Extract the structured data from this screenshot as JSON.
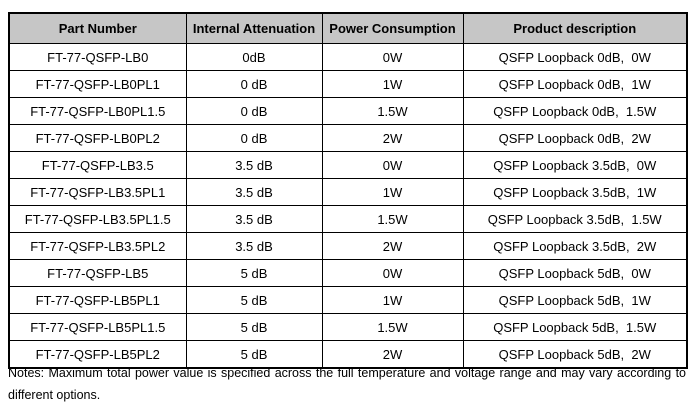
{
  "table": {
    "headers": [
      "Part Number",
      "Internal Attenuation",
      "Power Consumption",
      "Product description"
    ],
    "rows": [
      [
        "FT-77-QSFP-LB0",
        "0dB",
        "0W",
        "QSFP Loopback 0dB,  0W"
      ],
      [
        "FT-77-QSFP-LB0PL1",
        "0 dB",
        "1W",
        "QSFP Loopback 0dB,  1W"
      ],
      [
        "FT-77-QSFP-LB0PL1.5",
        "0 dB",
        "1.5W",
        "QSFP Loopback 0dB,  1.5W"
      ],
      [
        "FT-77-QSFP-LB0PL2",
        "0 dB",
        "2W",
        "QSFP Loopback 0dB,  2W"
      ],
      [
        "FT-77-QSFP-LB3.5",
        "3.5 dB",
        "0W",
        "QSFP Loopback 3.5dB,  0W"
      ],
      [
        "FT-77-QSFP-LB3.5PL1",
        "3.5 dB",
        "1W",
        "QSFP Loopback 3.5dB,  1W"
      ],
      [
        "FT-77-QSFP-LB3.5PL1.5",
        "3.5 dB",
        "1.5W",
        "QSFP Loopback 3.5dB,  1.5W"
      ],
      [
        "FT-77-QSFP-LB3.5PL2",
        "3.5 dB",
        "2W",
        "QSFP Loopback 3.5dB,  2W"
      ],
      [
        "FT-77-QSFP-LB5",
        "5 dB",
        "0W",
        "QSFP Loopback 5dB,  0W"
      ],
      [
        "FT-77-QSFP-LB5PL1",
        "5 dB",
        "1W",
        "QSFP Loopback 5dB,  1W"
      ],
      [
        "FT-77-QSFP-LB5PL1.5",
        "5 dB",
        "1.5W",
        "QSFP Loopback 5dB,  1.5W"
      ],
      [
        "FT-77-QSFP-LB5PL2",
        "5 dB",
        "2W",
        "QSFP Loopback 5dB,  2W"
      ]
    ],
    "cell_names": [
      "part-number-cell",
      "attenuation-cell",
      "power-cell",
      "description-cell"
    ]
  },
  "notes": {
    "line1": "Notes: Maximum total power value is specified across the full temperature and voltage range and may vary according to",
    "line2": "different options."
  },
  "colors": {
    "header_background": "#c6c6c6",
    "border": "#000000",
    "text": "#000000",
    "page_background": "#ffffff"
  }
}
